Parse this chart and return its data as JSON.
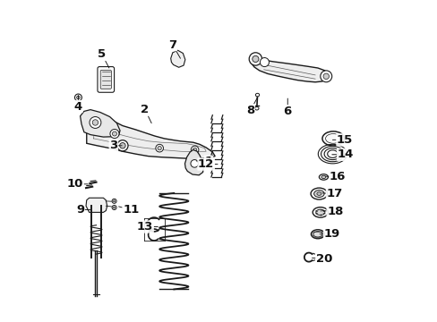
{
  "bg": "#ffffff",
  "lc": "#1a1a1a",
  "lbl": "#111111",
  "fs": 9.5,
  "fw": "bold",
  "labels": {
    "1": {
      "part": [
        0.43,
        0.5
      ],
      "text": [
        0.468,
        0.498
      ]
    },
    "2": {
      "part": [
        0.29,
        0.618
      ],
      "text": [
        0.27,
        0.66
      ]
    },
    "3": {
      "part": [
        0.198,
        0.548
      ],
      "text": [
        0.172,
        0.548
      ]
    },
    "4": {
      "part": [
        0.062,
        0.705
      ],
      "text": [
        0.062,
        0.67
      ]
    },
    "5": {
      "part": [
        0.158,
        0.79
      ],
      "text": [
        0.136,
        0.832
      ]
    },
    "6": {
      "part": [
        0.714,
        0.695
      ],
      "text": [
        0.714,
        0.655
      ]
    },
    "7": {
      "part": [
        0.38,
        0.82
      ],
      "text": [
        0.356,
        0.862
      ]
    },
    "8": {
      "part": [
        0.62,
        0.698
      ],
      "text": [
        0.598,
        0.658
      ]
    },
    "9": {
      "part": [
        0.1,
        0.348
      ],
      "text": [
        0.068,
        0.348
      ]
    },
    "10": {
      "part": [
        0.092,
        0.428
      ],
      "text": [
        0.052,
        0.428
      ]
    },
    "11": {
      "part": [
        0.188,
        0.358
      ],
      "text": [
        0.226,
        0.348
      ]
    },
    "12": {
      "part": [
        0.496,
        0.49
      ],
      "text": [
        0.46,
        0.49
      ]
    },
    "13": {
      "part": [
        0.31,
        0.295
      ],
      "text": [
        0.27,
        0.295
      ]
    },
    "14": {
      "part": [
        0.852,
        0.52
      ],
      "text": [
        0.894,
        0.52
      ]
    },
    "15": {
      "part": [
        0.854,
        0.566
      ],
      "text": [
        0.892,
        0.566
      ]
    },
    "16": {
      "part": [
        0.832,
        0.452
      ],
      "text": [
        0.87,
        0.452
      ]
    },
    "17": {
      "part": [
        0.822,
        0.4
      ],
      "text": [
        0.86,
        0.398
      ]
    },
    "18": {
      "part": [
        0.822,
        0.345
      ],
      "text": [
        0.862,
        0.342
      ]
    },
    "19": {
      "part": [
        0.814,
        0.272
      ],
      "text": [
        0.852,
        0.272
      ]
    },
    "20": {
      "part": [
        0.79,
        0.198
      ],
      "text": [
        0.828,
        0.196
      ]
    }
  }
}
